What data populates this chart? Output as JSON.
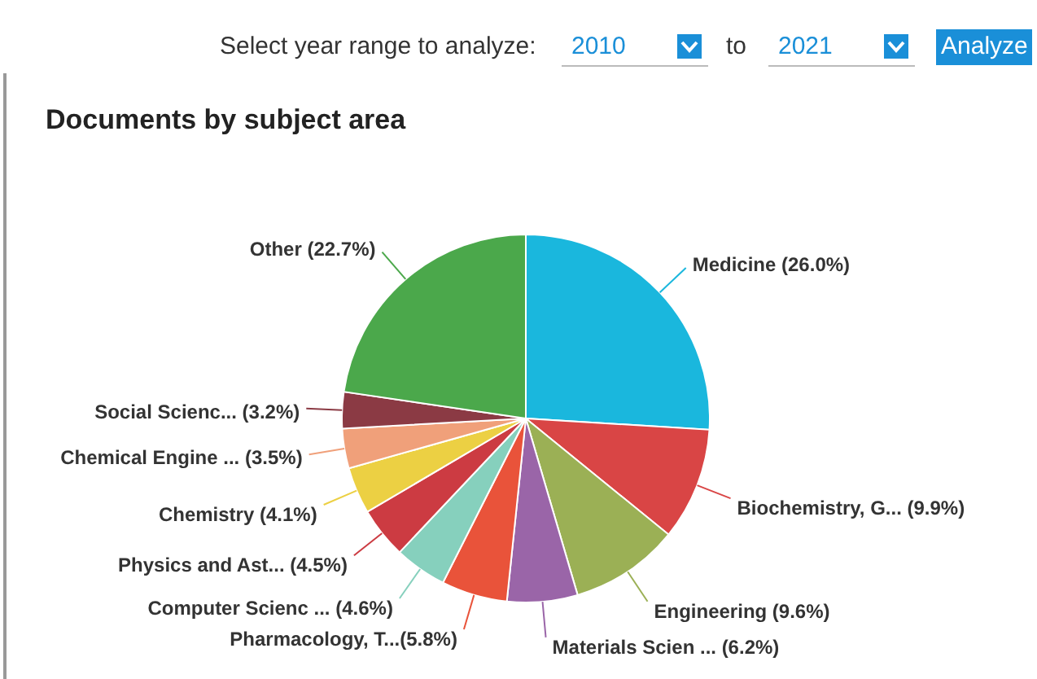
{
  "chart_data": {
    "type": "pie",
    "title": "Documents by subject area",
    "categories": [
      "Medicine",
      "Biochemistry, G...",
      "Engineering",
      "Materials Scien ...",
      "Pharmacology, T...",
      "Computer Scienc ...",
      "Physics and Ast...",
      "Chemistry",
      "Chemical Engine ...",
      "Social Scienc...",
      "Other"
    ],
    "values": [
      26.0,
      9.9,
      9.6,
      6.2,
      5.8,
      4.6,
      4.5,
      4.1,
      3.5,
      3.2,
      22.7
    ],
    "value_labels": [
      " (26.0%)",
      " (9.9%)",
      " (9.6%)",
      " (6.2%)",
      "(5.8%)",
      " (4.6%)",
      " (4.5%)",
      " (4.1%)",
      " (3.5%)",
      " (3.2%)",
      " (22.7%)"
    ],
    "colors": [
      "#1ab7dd",
      "#d94545",
      "#9bb055",
      "#9a65a8",
      "#e9533a",
      "#86d0bd",
      "#cc3b42",
      "#ecd043",
      "#f0a07a",
      "#8b3a44",
      "#4ba84b"
    ],
    "annotations": [
      "Select year range to analyze:",
      "2010",
      "to",
      "2021",
      "Analyze"
    ],
    "legend": false
  }
}
